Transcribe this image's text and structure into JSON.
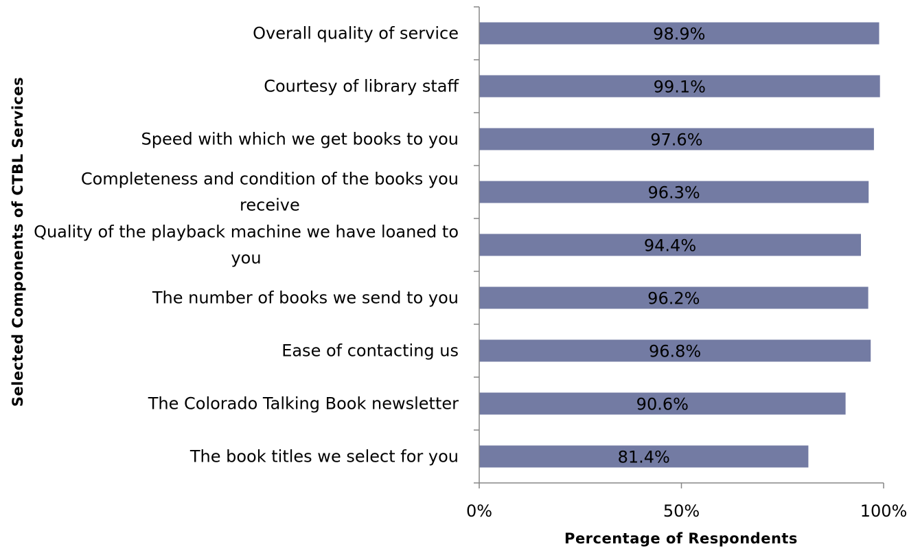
{
  "chart_data": {
    "type": "bar",
    "orientation": "horizontal",
    "categories": [
      "Overall quality of service",
      "Courtesy of library staff",
      "Speed with which we get books to you",
      "Completeness and condition of the books you receive",
      "Quality of the playback machine we have loaned to you",
      "The number of books we send to you",
      "Ease of contacting us",
      "The Colorado Talking Book newsletter",
      "The book titles we select for you"
    ],
    "category_lines": [
      [
        "Overall quality of service"
      ],
      [
        "Courtesy of library staff"
      ],
      [
        "Speed with which we get books to you"
      ],
      [
        "Completeness and condition of the books you",
        "receive"
      ],
      [
        "Quality of the playback machine we have loaned to",
        "you"
      ],
      [
        "The number of books we send to you"
      ],
      [
        "Ease of contacting us"
      ],
      [
        "The Colorado Talking Book newsletter"
      ],
      [
        "The book titles we select for you"
      ]
    ],
    "values": [
      98.9,
      99.1,
      97.6,
      96.3,
      94.4,
      96.2,
      96.8,
      90.6,
      81.4
    ],
    "data_labels": [
      "98.9%",
      "99.1%",
      "97.6%",
      "96.3%",
      "94.4%",
      "96.2%",
      "96.8%",
      "90.6%",
      "81.4%"
    ],
    "xlabel": "Percentage of Respondents",
    "ylabel": "Selected Components of CTBL Services",
    "xlim": [
      0,
      100
    ],
    "x_ticks": [
      0,
      50,
      100
    ],
    "x_tick_labels": [
      "0%",
      "50%",
      "100%"
    ],
    "grid": false,
    "legend": "none",
    "bar_color": "#737ba3",
    "axis_color": "#868686"
  }
}
